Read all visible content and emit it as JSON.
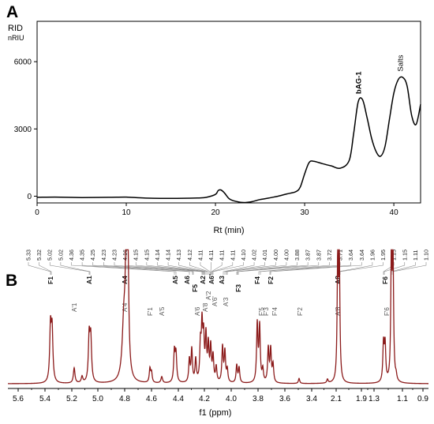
{
  "panel_a": {
    "letter": "A",
    "y_unit_1": "RID",
    "y_unit_2": "nRIU",
    "peak_labels": [
      "bAG-1",
      "Salts"
    ]
  },
  "panel_b": {
    "letter": "B"
  },
  "chart_data": [
    {
      "type": "line",
      "title": "",
      "xlabel": "Rt (min)",
      "ylabel": "RID nRIU",
      "xlim": [
        0,
        43
      ],
      "ylim": [
        -300,
        7800
      ],
      "x_ticks": [
        "0",
        "10",
        "20",
        "30",
        "40"
      ],
      "y_ticks": [
        "0",
        "3000",
        "6000"
      ],
      "x_tick_values": [
        0,
        10,
        20,
        30,
        40
      ],
      "y_tick_values": [
        0,
        3000,
        6000
      ],
      "series": [
        {
          "x": [
            0,
            2,
            5,
            8,
            10,
            12,
            15,
            18,
            19,
            20,
            20.3,
            20.6,
            21,
            21.5,
            22,
            23,
            24,
            25,
            26,
            27,
            28,
            29,
            29.5,
            30,
            30.5,
            31,
            32,
            33,
            34,
            35,
            35.5,
            36,
            36.5,
            37,
            37.5,
            38,
            38.5,
            39,
            39.5,
            40,
            40.5,
            41,
            41.5,
            42,
            42.5,
            43
          ],
          "y": [
            -50,
            -40,
            -60,
            -50,
            -40,
            -80,
            -100,
            -80,
            -50,
            80,
            250,
            280,
            150,
            -100,
            -200,
            -280,
            -250,
            -150,
            -80,
            0,
            100,
            200,
            400,
            1000,
            1500,
            1560,
            1450,
            1350,
            1250,
            1600,
            2800,
            4200,
            4300,
            3500,
            2600,
            2000,
            1780,
            2200,
            3400,
            4600,
            5200,
            5300,
            4900,
            3600,
            3200,
            4100
          ]
        }
      ],
      "annotations": [
        {
          "text": "bAG-1",
          "x": 36.3,
          "y": 4350
        },
        {
          "text": "Salts",
          "x": 41.0,
          "y": 5350
        }
      ]
    },
    {
      "type": "line",
      "title": "",
      "xlabel": "f1 (ppm)",
      "ylabel": "",
      "x_ticks": [
        "5.6",
        "5.4",
        "5.2",
        "5.0",
        "4.8",
        "4.6",
        "4.4",
        "4.2",
        "4.0",
        "3.8",
        "3.6",
        "3.4",
        "2.1",
        "1.9",
        "1.3",
        "1.1",
        "0.9"
      ],
      "peak_shifts": [
        "5.33",
        "5.32",
        "5.02",
        "5.02",
        "4.36",
        "4.35",
        "4.25",
        "4.23",
        "4.23",
        "4.16",
        "4.15",
        "4.15",
        "4.14",
        "4.14",
        "4.13",
        "4.12",
        "4.11",
        "4.11",
        "4.11",
        "4.11",
        "4.10",
        "4.02",
        "4.01",
        "4.00",
        "4.00",
        "3.88",
        "3.87",
        "3.87",
        "3.72",
        "3.71",
        "3.64",
        "3.64",
        "1.96",
        "1.95",
        "1.15",
        "1.15",
        "1.11",
        "1.10"
      ],
      "assignments_bold": [
        "F1",
        "A1",
        "A4",
        "A5",
        "A6",
        "F5",
        "A2",
        "A6'",
        "A3",
        "F3",
        "F4",
        "F2",
        "A8",
        "F6"
      ],
      "assignments_light": [
        "A'1",
        "A'4",
        "F'1",
        "A'5",
        "A'6",
        "A'2",
        "A'6'",
        "A'8",
        "A'3",
        "F'5",
        "F'3",
        "F'4",
        "F'2",
        "A'8",
        "F'6"
      ],
      "peaks": [
        {
          "label": "F1",
          "height": 0.38
        },
        {
          "label": "A'1",
          "height": 0.14
        },
        {
          "label": "A1",
          "height": 0.35
        },
        {
          "label": "A4",
          "height": 1.0
        },
        {
          "label": "F'1",
          "height": 0.12
        },
        {
          "label": "A'5",
          "height": 0.05
        },
        {
          "label": "A5",
          "height": 0.24
        },
        {
          "label": "A6",
          "height": 0.27
        },
        {
          "label": "A2",
          "height": 0.5
        },
        {
          "label": "A3",
          "height": 0.3
        },
        {
          "label": "F3",
          "height": 0.2
        },
        {
          "label": "F4",
          "height": 0.45
        },
        {
          "label": "F2",
          "height": 0.3
        },
        {
          "label": "F'2",
          "height": 0.05
        },
        {
          "label": "A8",
          "height": 0.95
        },
        {
          "label": "F'6",
          "height": 0.32
        },
        {
          "label": "F6",
          "height": 1.0
        }
      ]
    }
  ],
  "colors": {
    "spectrum": "#8b1a1a",
    "chromatogram": "#000000"
  }
}
